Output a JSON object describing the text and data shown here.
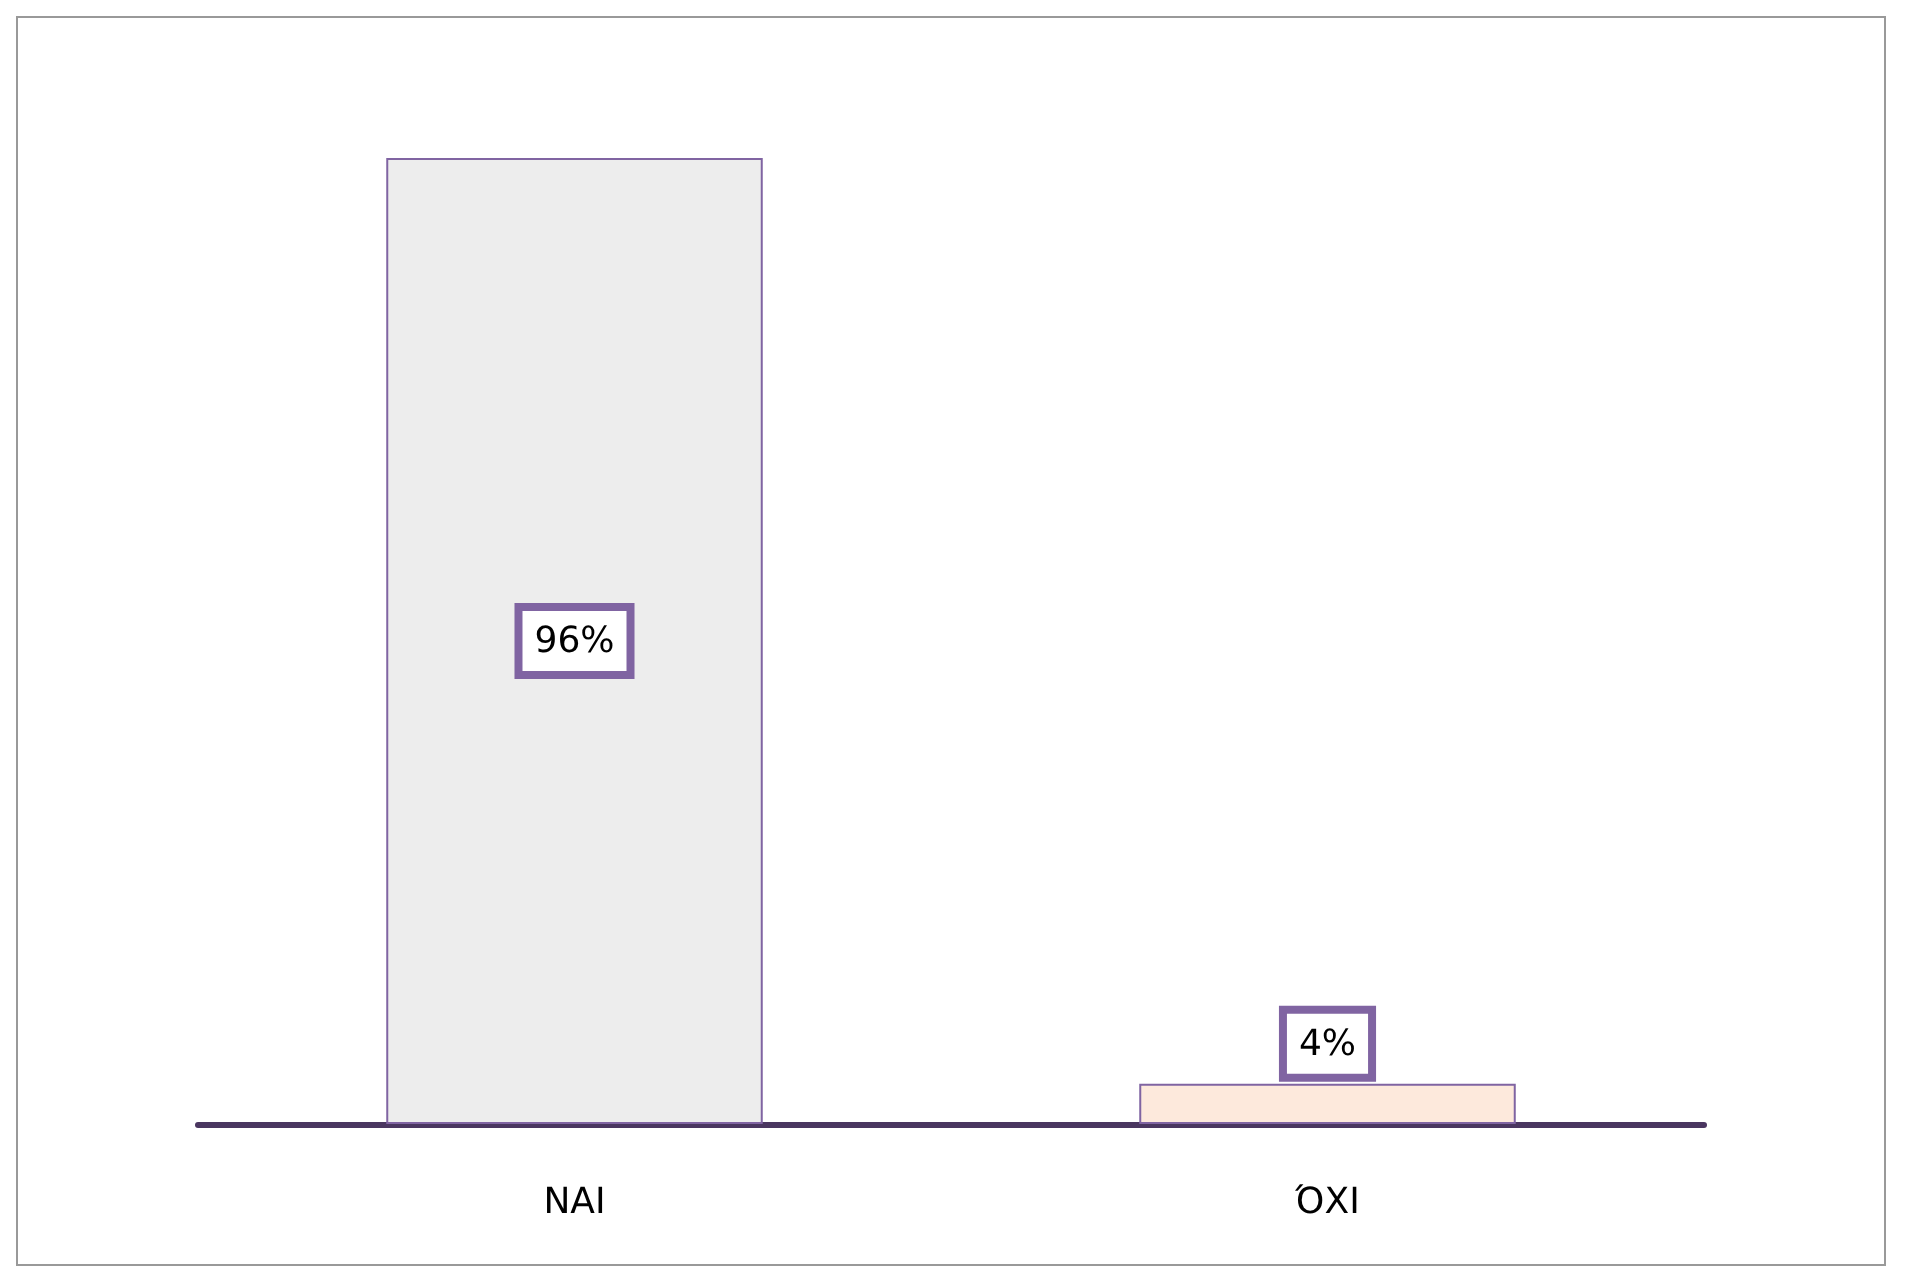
{
  "chart_data": {
    "type": "bar",
    "categories": [
      "ΝΑΙ",
      "ΌΧΙ"
    ],
    "values": [
      96,
      4
    ],
    "colors": [
      "#ededed",
      "#fde9dc"
    ],
    "value_labels": [
      "96%",
      "4%"
    ]
  }
}
